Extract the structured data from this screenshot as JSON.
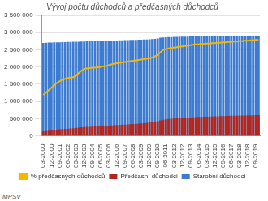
{
  "chart_data": {
    "type": "bar",
    "title": "Vývoj počtu důchodců a předčasných důchodců",
    "annotations": [
      "MPSV"
    ],
    "legend": "bottom",
    "grid": true,
    "categories": [
      "03-2000",
      null,
      null,
      "12-2000",
      null,
      null,
      "09-2001",
      null,
      null,
      "06-2002",
      null,
      null,
      "03-2003",
      null,
      null,
      "12-2003",
      null,
      null,
      "09-2004",
      null,
      null,
      "06-2005",
      null,
      null,
      "03-2006",
      null,
      null,
      "12-2006",
      null,
      null,
      "09-2007",
      null,
      null,
      "06-2008",
      null,
      null,
      "03-2009",
      null,
      null,
      "12-2009",
      null,
      null,
      "09-2010",
      null,
      null,
      "06-2011",
      null,
      null,
      "03-2012",
      null,
      null,
      "12-2012",
      null,
      null,
      "09-2013",
      null,
      null,
      "06-2014",
      null,
      null,
      "03-2015",
      null,
      null,
      "12-2015",
      null,
      null,
      "09-2016",
      null,
      null,
      "06-2017",
      null,
      null,
      "03-2018",
      null,
      null,
      "12-2018",
      null,
      null,
      "09-2019",
      null
    ],
    "series": [
      {
        "name": "Starobní důchodci",
        "type": "bar",
        "color": "#3d7bd0",
        "values": [
          2700000,
          2705000,
          2710000,
          2712000,
          2715000,
          2718000,
          2720000,
          2722000,
          2725000,
          2727000,
          2730000,
          2732000,
          2735000,
          2737000,
          2740000,
          2742000,
          2745000,
          2747000,
          2750000,
          2752000,
          2755000,
          2757000,
          2760000,
          2762000,
          2765000,
          2767000,
          2770000,
          2772000,
          2775000,
          2777000,
          2780000,
          2782000,
          2785000,
          2787000,
          2790000,
          2792000,
          2795000,
          2798000,
          2800000,
          2805000,
          2810000,
          2815000,
          2830000,
          2850000,
          2860000,
          2865000,
          2870000,
          2872000,
          2875000,
          2877000,
          2879000,
          2880000,
          2882000,
          2884000,
          2886000,
          2888000,
          2889000,
          2890000,
          2891000,
          2892000,
          2893000,
          2894000,
          2895000,
          2896000,
          2897000,
          2898000,
          2899000,
          2900000,
          2901000,
          2902000,
          2903000,
          2904000,
          2905000,
          2906000,
          2907000,
          2908000,
          2909000,
          2910000,
          2911000,
          2912000
        ]
      },
      {
        "name": "Předčasní důchodci",
        "type": "bar",
        "color": "#b3261e",
        "values": [
          130000,
          140000,
          150000,
          160000,
          170000,
          180000,
          190000,
          200000,
          205000,
          210000,
          215000,
          220000,
          230000,
          240000,
          250000,
          255000,
          260000,
          265000,
          270000,
          275000,
          280000,
          285000,
          290000,
          295000,
          300000,
          305000,
          310000,
          315000,
          320000,
          325000,
          330000,
          335000,
          340000,
          345000,
          350000,
          355000,
          360000,
          370000,
          380000,
          390000,
          400000,
          410000,
          430000,
          450000,
          470000,
          480000,
          490000,
          500000,
          505000,
          510000,
          515000,
          520000,
          525000,
          530000,
          535000,
          540000,
          545000,
          550000,
          553000,
          556000,
          559000,
          562000,
          565000,
          568000,
          571000,
          574000,
          577000,
          580000,
          582000,
          584000,
          586000,
          588000,
          590000,
          592000,
          594000,
          596000,
          598000,
          600000,
          602000,
          604000
        ]
      },
      {
        "name": "% předčasných důchodců",
        "type": "line",
        "axis": "y2",
        "marker": "none",
        "color": "#f5b800",
        "values": [
          10.2,
          10.8,
          11.4,
          12.0,
          12.6,
          13.2,
          13.6,
          14.0,
          14.2,
          14.4,
          14.5,
          14.6,
          15.0,
          15.6,
          16.2,
          16.6,
          16.8,
          16.9,
          17.0,
          17.0,
          17.1,
          17.2,
          17.3,
          17.4,
          17.6,
          17.8,
          18.0,
          18.1,
          18.2,
          18.3,
          18.4,
          18.5,
          18.6,
          18.7,
          18.8,
          18.9,
          19.0,
          19.1,
          19.2,
          19.3,
          19.5,
          19.8,
          20.2,
          20.8,
          21.4,
          21.6,
          21.8,
          21.9,
          22.0,
          22.1,
          22.2,
          22.3,
          22.4,
          22.5,
          22.6,
          22.7,
          22.8,
          22.8,
          22.9,
          22.9,
          23.0,
          23.0,
          23.1,
          23.1,
          23.2,
          23.2,
          23.3,
          23.3,
          23.4,
          23.4,
          23.5,
          23.5,
          23.6,
          23.6,
          23.7,
          23.7,
          23.8,
          23.8,
          23.9,
          23.9
        ]
      }
    ],
    "ylim": [
      0,
      3500000
    ],
    "yticks": [
      0,
      {
        "value": 500000,
        "label": "500 000"
      },
      {
        "value": 1000000,
        "label": "1 000 000"
      },
      {
        "value": 1500000,
        "label": "1 500 000"
      },
      {
        "value": 2000000,
        "label": "2 000 000"
      },
      {
        "value": 2500000,
        "label": "2 500 000"
      },
      {
        "value": 3000000,
        "label": "3 000 000"
      },
      {
        "value": 3500000,
        "label": "3 500 000"
      }
    ],
    "y2lim": [
      0,
      30
    ]
  }
}
